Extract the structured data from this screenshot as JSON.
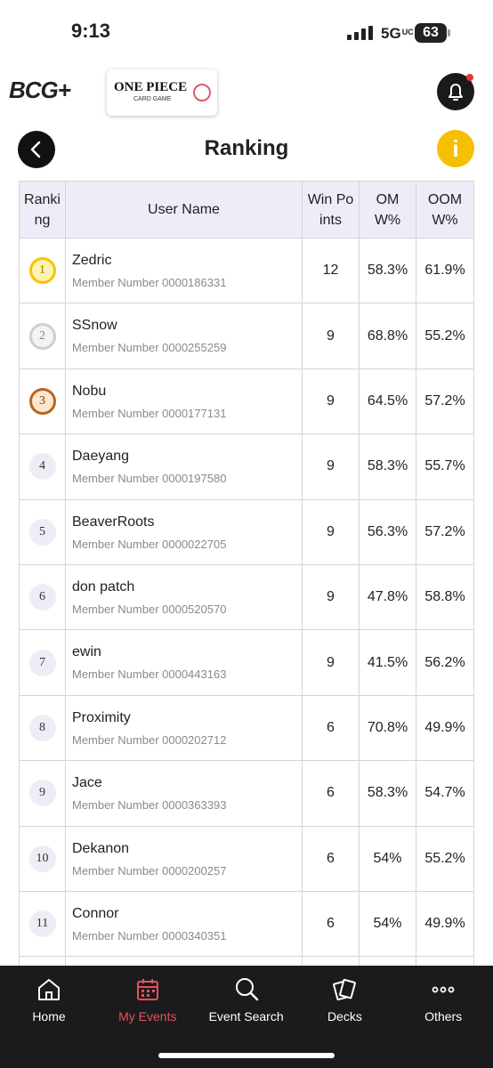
{
  "status_bar": {
    "time": "9:13",
    "network": "5G",
    "network_sub": "UC",
    "battery": "63"
  },
  "header": {
    "logo": "BCG+",
    "brand_title": "ONE PIECE",
    "brand_subtitle": "CARD GAME"
  },
  "page": {
    "title": "Ranking",
    "info": "i"
  },
  "table": {
    "header": [
      "Ranking",
      "User Name",
      "Win Points",
      "OMW%",
      "OOMW%"
    ],
    "rows": [
      {
        "rank": "1",
        "name": "Zedric",
        "member": "Member Number 0000186331",
        "win_points": "12",
        "omw": "58.3%",
        "oomw": "61.9%"
      },
      {
        "rank": "2",
        "name": "SSnow",
        "member": "Member Number 0000255259",
        "win_points": "9",
        "omw": "68.8%",
        "oomw": "55.2%"
      },
      {
        "rank": "3",
        "name": "Nobu",
        "member": "Member Number 0000177131",
        "win_points": "9",
        "omw": "64.5%",
        "oomw": "57.2%"
      },
      {
        "rank": "4",
        "name": "Daeyang",
        "member": "Member Number 0000197580",
        "win_points": "9",
        "omw": "58.3%",
        "oomw": "55.7%"
      },
      {
        "rank": "5",
        "name": "BeaverRoots",
        "member": "Member Number 0000022705",
        "win_points": "9",
        "omw": "56.3%",
        "oomw": "57.2%"
      },
      {
        "rank": "6",
        "name": "don patch",
        "member": "Member Number 0000520570",
        "win_points": "9",
        "omw": "47.8%",
        "oomw": "58.8%"
      },
      {
        "rank": "7",
        "name": "ewin",
        "member": "Member Number 0000443163",
        "win_points": "9",
        "omw": "41.5%",
        "oomw": "56.2%"
      },
      {
        "rank": "8",
        "name": "Proximity",
        "member": "Member Number 0000202712",
        "win_points": "6",
        "omw": "70.8%",
        "oomw": "49.9%"
      },
      {
        "rank": "9",
        "name": "Jace",
        "member": "Member Number 0000363393",
        "win_points": "6",
        "omw": "58.3%",
        "oomw": "54.7%"
      },
      {
        "rank": "10",
        "name": "Dekanon",
        "member": "Member Number 0000200257",
        "win_points": "6",
        "omw": "54%",
        "oomw": "55.2%"
      },
      {
        "rank": "11",
        "name": "Connor",
        "member": "Member Number 0000340351",
        "win_points": "6",
        "omw": "54%",
        "oomw": "49.9%"
      }
    ]
  },
  "nav": [
    "Home",
    "My Events",
    "Event Search",
    "Decks",
    "Others"
  ]
}
